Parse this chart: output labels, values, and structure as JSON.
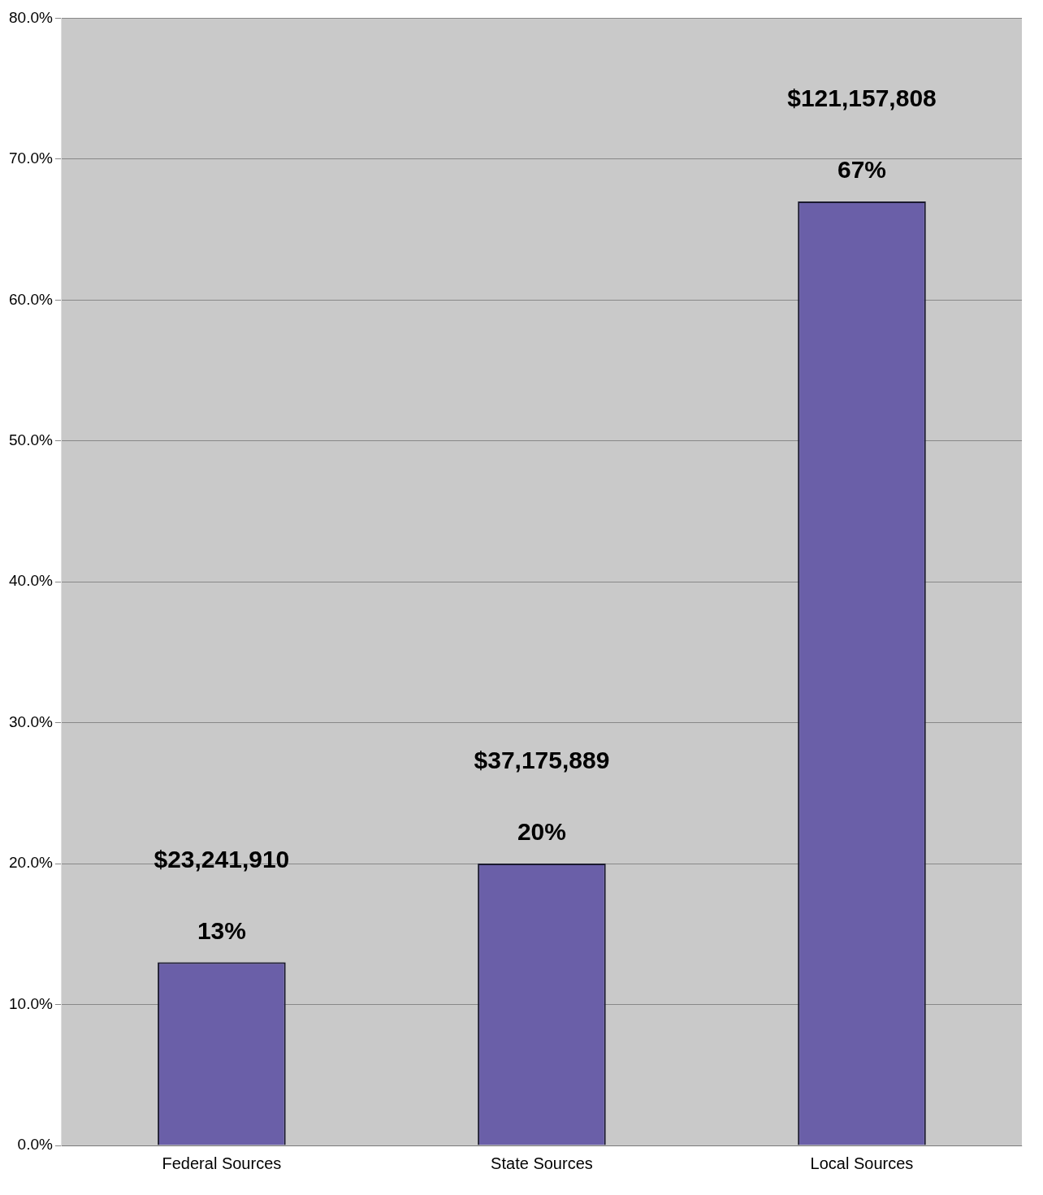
{
  "chart_data": {
    "type": "bar",
    "categories": [
      "Federal Sources",
      "State Sources",
      "Local Sources"
    ],
    "values": [
      13,
      20,
      67
    ],
    "value_labels": [
      "13%",
      "20%",
      "67%"
    ],
    "annotations": [
      "$23,241,910",
      "$37,175,889",
      "$121,157,808"
    ],
    "color": "#6a5fa8",
    "ylim": [
      0,
      80
    ],
    "yticks": [
      {
        "value": 0,
        "label": "0.0%"
      },
      {
        "value": 10,
        "label": "10.0%"
      },
      {
        "value": 20,
        "label": "20.0%"
      },
      {
        "value": 30,
        "label": "30.0%"
      },
      {
        "value": 40,
        "label": "40.0%"
      },
      {
        "value": 50,
        "label": "50.0%"
      },
      {
        "value": 60,
        "label": "60.0%"
      },
      {
        "value": 70,
        "label": "70.0%"
      },
      {
        "value": 80,
        "label": "80.0%"
      }
    ],
    "grid": "y",
    "legend": false
  }
}
